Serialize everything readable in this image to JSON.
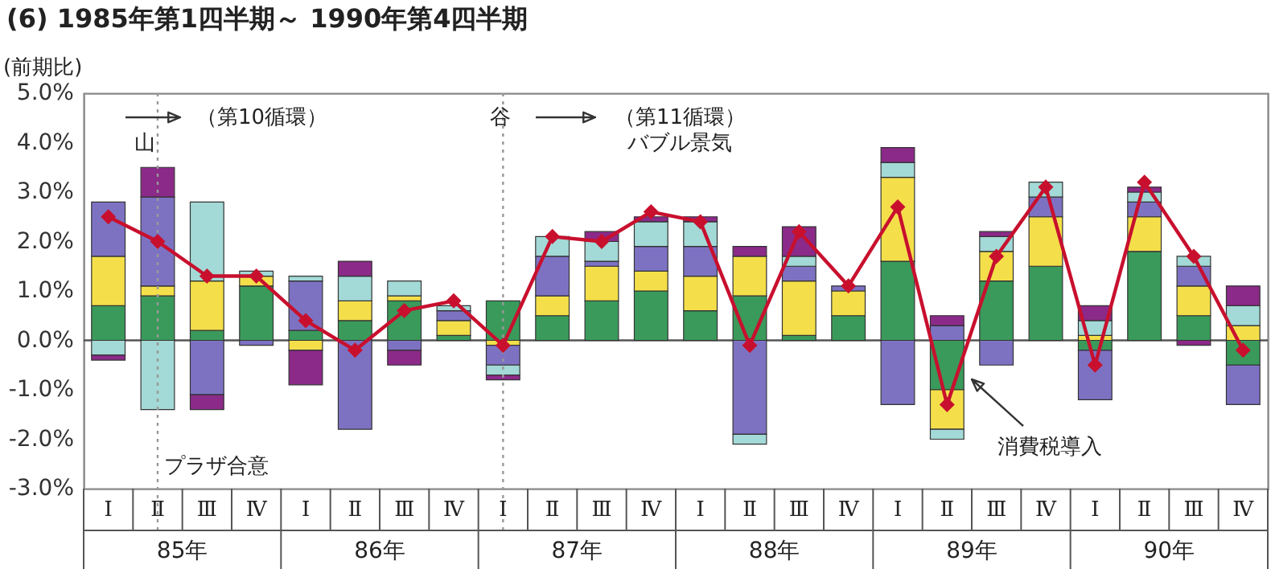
{
  "chart_data": {
    "type": "bar",
    "title": "(6) 1985年第1四半期～ 1990年第4四半期",
    "ylabel": "(前期比)",
    "categories": [
      "Ⅰ",
      "Ⅱ",
      "Ⅲ",
      "Ⅳ",
      "Ⅰ",
      "Ⅱ",
      "Ⅲ",
      "Ⅳ",
      "Ⅰ",
      "Ⅱ",
      "Ⅲ",
      "Ⅳ",
      "Ⅰ",
      "Ⅱ",
      "Ⅲ",
      "Ⅳ",
      "Ⅰ",
      "Ⅱ",
      "Ⅲ",
      "Ⅳ",
      "Ⅰ",
      "Ⅱ",
      "Ⅲ",
      "Ⅳ"
    ],
    "stacked": true,
    "series": [
      {
        "color": "#3a9a5b",
        "values": [
          0.7,
          0.9,
          0.2,
          1.1,
          0.2,
          0.4,
          0.8,
          0.1,
          0.8,
          0.5,
          0.8,
          1.0,
          0.6,
          0.9,
          0.1,
          0.5,
          1.6,
          -1.0,
          1.2,
          1.5,
          -0.2,
          1.8,
          0.5,
          -0.5
        ]
      },
      {
        "color": "#f4df4a",
        "values": [
          1.0,
          0.2,
          1.0,
          0.2,
          -0.2,
          0.4,
          0.1,
          0.3,
          -0.1,
          0.4,
          0.7,
          0.4,
          0.7,
          0.8,
          1.1,
          0.5,
          1.7,
          -0.8,
          0.6,
          1.0,
          0.1,
          0.7,
          0.6,
          0.3
        ]
      },
      {
        "color": "#7d72c2",
        "values": [
          1.1,
          1.8,
          -1.1,
          -0.1,
          1.0,
          -1.8,
          -0.2,
          0.2,
          -0.4,
          0.8,
          0.1,
          0.5,
          0.6,
          -1.9,
          0.3,
          0.1,
          -1.3,
          0.3,
          -0.5,
          0.4,
          -1.0,
          0.3,
          0.4,
          -0.8
        ]
      },
      {
        "color": "#a3d9d6",
        "values": [
          -0.3,
          -1.4,
          1.6,
          0.1,
          0.1,
          0.5,
          0.3,
          0.1,
          -0.2,
          0.4,
          0.4,
          0.5,
          0.5,
          -0.2,
          0.2,
          null,
          0.3,
          -0.2,
          0.3,
          0.3,
          0.3,
          0.2,
          0.2,
          0.4
        ]
      },
      {
        "color": "#8b2a88",
        "values": [
          -0.1,
          0.6,
          -0.3,
          null,
          -0.7,
          0.3,
          -0.3,
          null,
          -0.1,
          null,
          0.2,
          0.1,
          0.1,
          0.2,
          0.6,
          null,
          0.3,
          0.2,
          0.1,
          null,
          0.3,
          0.1,
          -0.1,
          0.4
        ]
      },
      {
        "type": "line",
        "color": "#c8102e",
        "values": [
          2.5,
          2.0,
          1.3,
          1.3,
          0.4,
          -0.2,
          0.6,
          0.8,
          -0.1,
          2.1,
          2.0,
          2.6,
          2.4,
          -0.1,
          2.2,
          1.1,
          2.7,
          -1.3,
          1.7,
          3.1,
          -0.5,
          3.2,
          1.7,
          -0.2
        ]
      }
    ],
    "marker": "diamond",
    "ylim": [
      -3,
      5
    ],
    "yticks": [
      {
        "value": -3,
        "label": "-3.0%"
      },
      {
        "value": -2,
        "label": "-2.0%"
      },
      {
        "value": -1,
        "label": "-1.0%"
      },
      {
        "value": 0,
        "label": "0.0%"
      },
      {
        "value": 1,
        "label": "1.0%"
      },
      {
        "value": 2,
        "label": "2.0%"
      },
      {
        "value": 3,
        "label": "3.0%"
      },
      {
        "value": 4,
        "label": "4.0%"
      },
      {
        "value": 5,
        "label": "5.0%"
      }
    ],
    "ref_lines": [
      {
        "axis": "y",
        "value": 0,
        "color": "#555555",
        "line_style": "solid"
      }
    ],
    "annotations": [
      "山",
      "（第10循環）",
      "谷",
      "（第11循環）",
      "バブル景気",
      "プラザ合意",
      "消費税導入",
      "85年",
      "86年",
      "87年",
      "88年",
      "89年",
      "90年"
    ]
  }
}
